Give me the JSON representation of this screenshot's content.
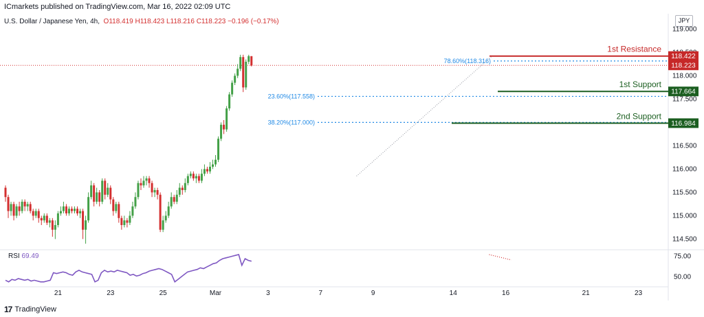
{
  "header": {
    "publisher": "ICmarkets published on TradingView.com, Mar 16, 2022 02:09 UTC"
  },
  "legend": {
    "symbol": "U.S. Dollar / Japanese Yen, 4h,",
    "open": "O118.419",
    "high": "H118.423",
    "low": "L118.216",
    "close": "C118.223",
    "change": "−0.196 (−0.17%)"
  },
  "currency": "JPY",
  "rsi": {
    "label": "RSI",
    "value": "69.49"
  },
  "footer": {
    "logo_text": "TradingView"
  },
  "colors": {
    "up": "#43a047",
    "down": "#d32f2f",
    "resistance": "#c62828",
    "support": "#1b5e20",
    "fib": "#1e88e5",
    "rsi": "#7e57c2"
  },
  "chart_data": {
    "type": "candlestick",
    "y_ticks": [
      119.0,
      118.5,
      118.0,
      117.5,
      117.0,
      116.5,
      116.0,
      115.5,
      115.0,
      114.5
    ],
    "ylim": [
      114.3,
      119.3
    ],
    "x_ticks": [
      {
        "label": "21",
        "i": 19
      },
      {
        "label": "23",
        "i": 38
      },
      {
        "label": "25",
        "i": 57
      },
      {
        "label": "Mar",
        "i": 76
      },
      {
        "label": "3",
        "i": 95
      },
      {
        "label": "7",
        "i": 114
      },
      {
        "label": "9",
        "i": 133
      },
      {
        "label": "14",
        "i": 162
      },
      {
        "label": "16",
        "i": 181
      },
      {
        "label": "21",
        "i": 210
      },
      {
        "label": "23",
        "i": 229
      }
    ],
    "levels": [
      {
        "name": "1st Resistance",
        "value": 118.422,
        "kind": "resistance"
      },
      {
        "name": "1st Support",
        "value": 117.664,
        "kind": "support"
      },
      {
        "name": "2nd Support",
        "value": 116.984,
        "kind": "support"
      }
    ],
    "fib_levels": [
      {
        "label": "78.60%(118.316)",
        "value": 118.316
      },
      {
        "label": "23.60%(117.558)",
        "value": 117.558
      },
      {
        "label": "38.20%(117.000)",
        "value": 117.0
      }
    ],
    "price_tags": [
      {
        "label": "118.422",
        "value": 118.422,
        "kind": "resistance"
      },
      {
        "label": "118.223",
        "value": 118.223,
        "kind": "current"
      },
      {
        "label": "117.664",
        "value": 117.664,
        "kind": "support"
      },
      {
        "label": "116.984",
        "value": 116.984,
        "kind": "support"
      }
    ],
    "rsi_ticks": [
      75.0,
      50.0
    ],
    "rsi_ylim": [
      38,
      82
    ],
    "candles": [
      [
        115.6,
        115.4,
        115.65,
        115.3
      ],
      [
        115.4,
        115.1,
        115.45,
        114.95
      ],
      [
        115.1,
        115.25,
        115.3,
        115.0
      ],
      [
        115.25,
        115.0,
        115.3,
        114.9
      ],
      [
        115.0,
        115.2,
        115.25,
        114.95
      ],
      [
        115.2,
        115.1,
        115.3,
        115.0
      ],
      [
        115.1,
        115.3,
        115.35,
        115.05
      ],
      [
        115.3,
        115.2,
        115.35,
        115.1
      ],
      [
        115.2,
        115.25,
        115.3,
        115.1
      ],
      [
        115.25,
        115.1,
        115.3,
        115.05
      ],
      [
        115.1,
        115.0,
        115.15,
        114.9
      ],
      [
        115.0,
        115.1,
        115.15,
        114.95
      ],
      [
        115.1,
        114.95,
        115.15,
        114.85
      ],
      [
        114.95,
        114.9,
        115.0,
        114.8
      ],
      [
        114.9,
        115.0,
        115.05,
        114.85
      ],
      [
        115.0,
        114.85,
        115.05,
        114.8
      ],
      [
        114.85,
        114.9,
        114.95,
        114.75
      ],
      [
        114.9,
        114.7,
        114.95,
        114.55
      ],
      [
        114.7,
        114.8,
        114.9,
        114.5
      ],
      [
        114.8,
        115.05,
        115.1,
        114.75
      ],
      [
        115.05,
        115.1,
        115.2,
        115.0
      ],
      [
        115.1,
        115.2,
        115.3,
        115.05
      ],
      [
        115.2,
        115.05,
        115.25,
        115.0
      ],
      [
        115.05,
        115.15,
        115.2,
        115.0
      ],
      [
        115.15,
        115.1,
        115.2,
        115.05
      ],
      [
        115.1,
        115.15,
        115.2,
        115.05
      ],
      [
        115.15,
        115.05,
        115.2,
        115.0
      ],
      [
        115.05,
        115.1,
        115.15,
        114.95
      ],
      [
        115.1,
        114.7,
        115.15,
        114.5
      ],
      [
        114.7,
        114.9,
        115.0,
        114.4
      ],
      [
        114.9,
        115.4,
        115.5,
        114.85
      ],
      [
        115.4,
        115.65,
        115.75,
        115.35
      ],
      [
        115.65,
        115.3,
        115.7,
        115.2
      ],
      [
        115.3,
        115.5,
        115.6,
        115.25
      ],
      [
        115.5,
        115.3,
        115.55,
        115.2
      ],
      [
        115.3,
        115.75,
        115.8,
        115.25
      ],
      [
        115.75,
        115.45,
        115.8,
        115.35
      ],
      [
        115.45,
        115.6,
        115.7,
        115.4
      ],
      [
        115.6,
        115.35,
        115.65,
        115.25
      ],
      [
        115.35,
        115.1,
        115.4,
        115.0
      ],
      [
        115.1,
        115.25,
        115.3,
        115.05
      ],
      [
        115.25,
        114.95,
        115.3,
        114.85
      ],
      [
        114.95,
        114.8,
        115.0,
        114.7
      ],
      [
        114.8,
        114.9,
        115.0,
        114.75
      ],
      [
        114.9,
        114.85,
        114.95,
        114.75
      ],
      [
        114.85,
        115.0,
        115.1,
        114.8
      ],
      [
        115.0,
        115.2,
        115.3,
        114.95
      ],
      [
        115.2,
        115.4,
        115.5,
        115.15
      ],
      [
        115.4,
        115.7,
        115.75,
        115.35
      ],
      [
        115.7,
        115.65,
        115.8,
        115.55
      ],
      [
        115.65,
        115.75,
        115.85,
        115.6
      ],
      [
        115.75,
        115.8,
        115.85,
        115.65
      ],
      [
        115.8,
        115.7,
        115.85,
        115.6
      ],
      [
        115.7,
        115.5,
        115.75,
        115.4
      ],
      [
        115.5,
        115.55,
        115.6,
        115.4
      ],
      [
        115.55,
        115.45,
        115.6,
        115.35
      ],
      [
        115.45,
        114.7,
        115.5,
        114.65
      ],
      [
        114.7,
        114.9,
        115.0,
        114.65
      ],
      [
        114.9,
        115.0,
        115.1,
        114.85
      ],
      [
        115.0,
        115.2,
        115.3,
        114.95
      ],
      [
        115.2,
        115.4,
        115.5,
        115.15
      ],
      [
        115.4,
        115.3,
        115.45,
        115.25
      ],
      [
        115.3,
        115.45,
        115.55,
        115.25
      ],
      [
        115.45,
        115.6,
        115.7,
        115.4
      ],
      [
        115.6,
        115.55,
        115.65,
        115.45
      ],
      [
        115.55,
        115.7,
        115.8,
        115.5
      ],
      [
        115.7,
        115.85,
        115.9,
        115.65
      ],
      [
        115.85,
        115.9,
        115.95,
        115.8
      ],
      [
        115.9,
        115.8,
        115.95,
        115.75
      ],
      [
        115.8,
        115.85,
        115.9,
        115.7
      ],
      [
        115.85,
        115.75,
        115.9,
        115.7
      ],
      [
        115.75,
        115.9,
        116.0,
        115.7
      ],
      [
        115.9,
        116.0,
        116.1,
        115.85
      ],
      [
        116.0,
        115.95,
        116.05,
        115.9
      ],
      [
        115.95,
        116.05,
        116.15,
        115.9
      ],
      [
        116.05,
        116.1,
        116.2,
        116.0
      ],
      [
        116.1,
        116.2,
        116.3,
        116.05
      ],
      [
        116.2,
        116.65,
        116.7,
        116.15
      ],
      [
        116.65,
        116.95,
        117.0,
        116.6
      ],
      [
        116.95,
        116.85,
        117.05,
        116.75
      ],
      [
        116.85,
        117.3,
        117.35,
        116.8
      ],
      [
        117.3,
        117.6,
        117.65,
        117.25
      ],
      [
        117.6,
        117.85,
        117.9,
        117.55
      ],
      [
        117.85,
        118.0,
        118.05,
        117.8
      ],
      [
        118.0,
        118.15,
        118.25,
        117.95
      ],
      [
        118.15,
        118.4,
        118.45,
        118.1
      ],
      [
        118.4,
        117.75,
        118.45,
        117.65
      ],
      [
        117.75,
        118.3,
        118.35,
        117.7
      ],
      [
        118.3,
        118.42,
        118.45,
        118.25
      ],
      [
        118.42,
        118.22,
        118.42,
        118.2
      ]
    ],
    "rsi_values": [
      46,
      44,
      47,
      46,
      48,
      47,
      46,
      47,
      45,
      46,
      45,
      44,
      44,
      45,
      46,
      55,
      54,
      55,
      56,
      55,
      53,
      52,
      56,
      58,
      56,
      55,
      54,
      53,
      44,
      46,
      55,
      58,
      56,
      57,
      56,
      58,
      57,
      56,
      55,
      52,
      53,
      51,
      52,
      54,
      55,
      57,
      58,
      59,
      60,
      59,
      57,
      55,
      53,
      44,
      47,
      50,
      53,
      56,
      57,
      58,
      59,
      61,
      60,
      62,
      64,
      66,
      67,
      70,
      72,
      73,
      74,
      75,
      76,
      77,
      64,
      72,
      70,
      69
    ]
  }
}
